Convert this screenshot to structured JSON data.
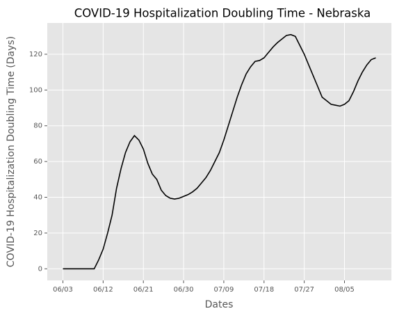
{
  "chart_data": {
    "type": "line",
    "title": "COVID-19 Hospitalization Doubling Time - Nebraska",
    "xlabel": "Dates",
    "ylabel": "COVID-19 Hospitalization Doubling Time (Days)",
    "x": [
      "06/03",
      "06/04",
      "06/05",
      "06/06",
      "06/07",
      "06/08",
      "06/09",
      "06/10",
      "06/11",
      "06/12",
      "06/13",
      "06/14",
      "06/15",
      "06/16",
      "06/17",
      "06/18",
      "06/19",
      "06/20",
      "06/21",
      "06/22",
      "06/23",
      "06/24",
      "06/25",
      "06/26",
      "06/27",
      "06/28",
      "06/29",
      "06/30",
      "07/01",
      "07/02",
      "07/03",
      "07/04",
      "07/05",
      "07/06",
      "07/07",
      "07/08",
      "07/09",
      "07/10",
      "07/11",
      "07/12",
      "07/13",
      "07/14",
      "07/15",
      "07/16",
      "07/17",
      "07/18",
      "07/19",
      "07/20",
      "07/21",
      "07/22",
      "07/23",
      "07/24",
      "07/25",
      "07/26",
      "07/27",
      "07/28",
      "07/29",
      "07/30",
      "07/31",
      "08/01",
      "08/02",
      "08/03",
      "08/04",
      "08/05",
      "08/06",
      "08/07",
      "08/08",
      "08/09",
      "08/10",
      "08/11",
      "08/12"
    ],
    "values": [
      0,
      0,
      0,
      0,
      0,
      0,
      0,
      0,
      5,
      11,
      20,
      30,
      45,
      56,
      65,
      71,
      74.5,
      72,
      67,
      59,
      53,
      50,
      44,
      41,
      39.5,
      39,
      39.5,
      40.5,
      41.5,
      43,
      45,
      48,
      51,
      55,
      60,
      65,
      72,
      80,
      88,
      96,
      103,
      109,
      113,
      116,
      116.5,
      118,
      121,
      124,
      126.5,
      128.5,
      130.5,
      131,
      130,
      125,
      120,
      114,
      108,
      102,
      96,
      94,
      92,
      91.5,
      91,
      92,
      94,
      99,
      105,
      110,
      114,
      117,
      118
    ],
    "color": "#000000",
    "xticks": [
      "06/03",
      "06/12",
      "06/21",
      "06/30",
      "07/09",
      "07/18",
      "07/27",
      "08/05"
    ],
    "ylim": [
      -6.5,
      137.5
    ],
    "yticks": [
      0,
      20,
      40,
      60,
      80,
      100,
      120
    ],
    "grid": true
  }
}
